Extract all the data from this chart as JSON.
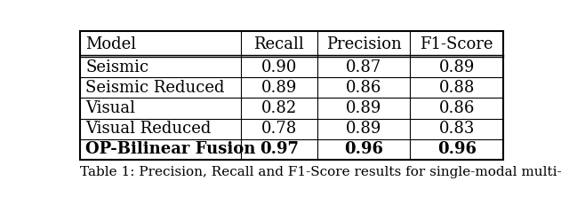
{
  "columns": [
    "Model",
    "Recall",
    "Precision",
    "F1-Score"
  ],
  "rows": [
    [
      "Seismic",
      "0.90",
      "0.87",
      "0.89"
    ],
    [
      "Seismic Reduced",
      "0.89",
      "0.86",
      "0.88"
    ],
    [
      "Visual",
      "0.82",
      "0.89",
      "0.86"
    ],
    [
      "Visual Reduced",
      "0.78",
      "0.89",
      "0.83"
    ],
    [
      "OP-Bilinear Fusion",
      "0.97",
      "0.96",
      "0.96"
    ]
  ],
  "bold_last_row": true,
  "caption": "Table 1: Precision, Recall and F1-Score results for single-modal multi-",
  "bg_color": "white",
  "font_size": 13,
  "caption_font_size": 11
}
